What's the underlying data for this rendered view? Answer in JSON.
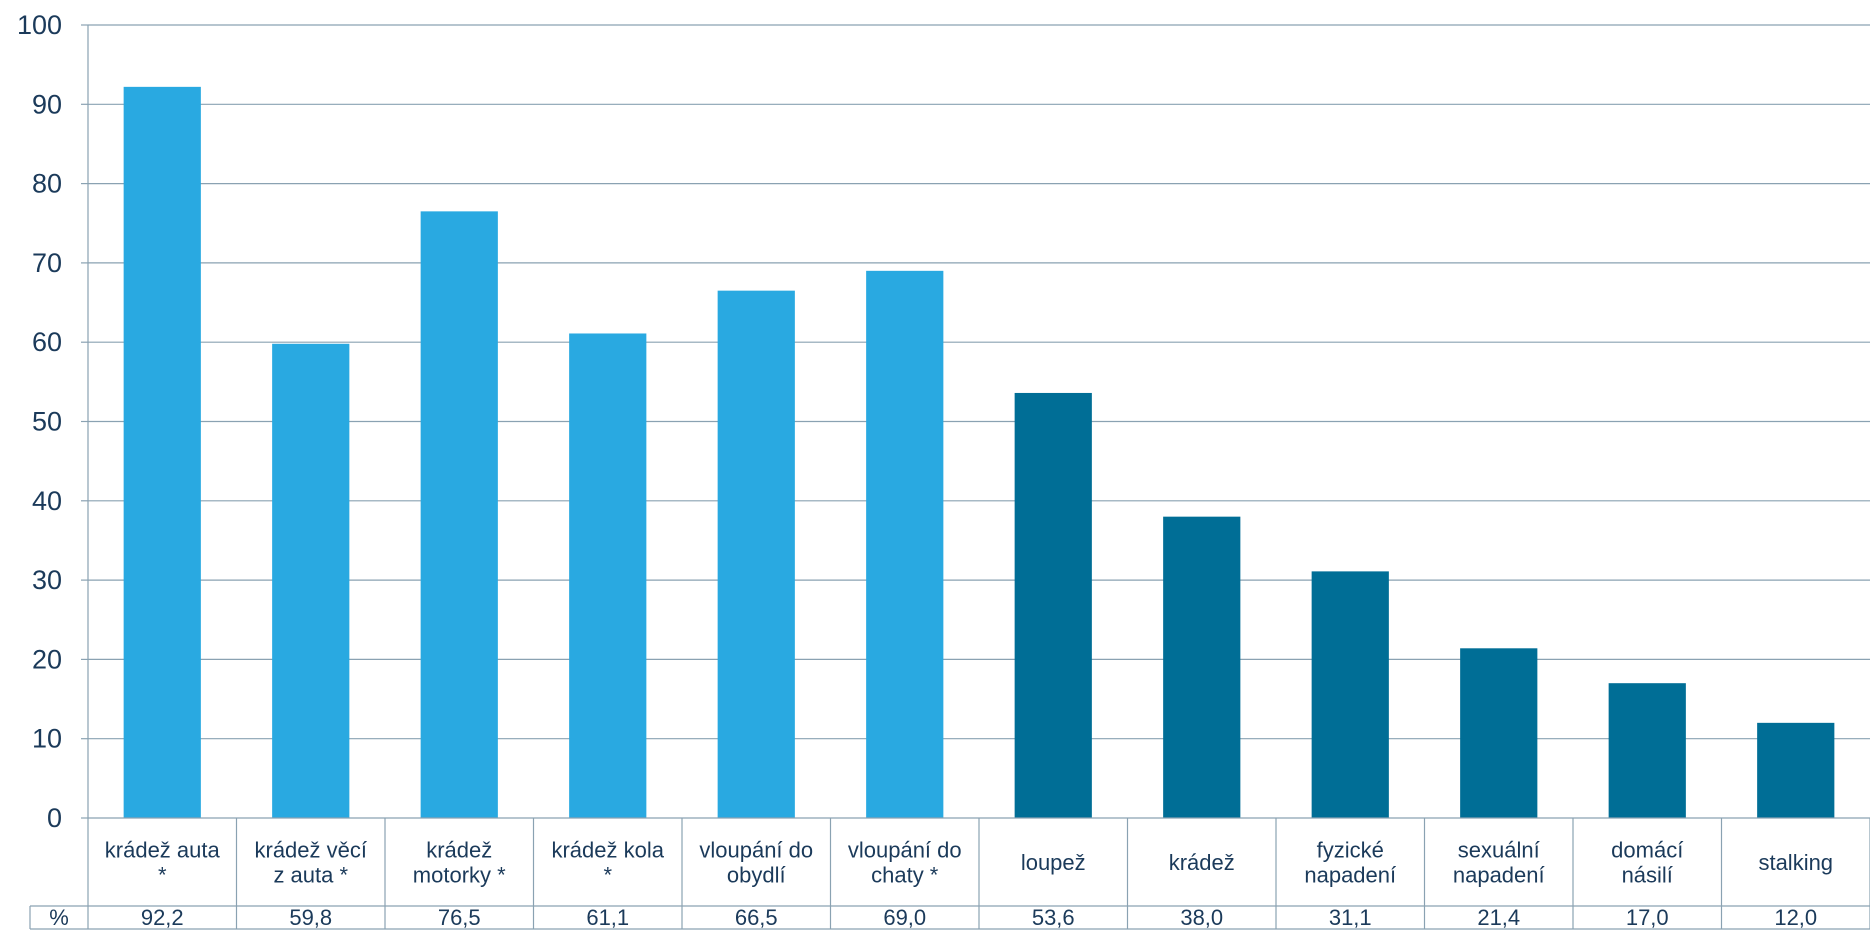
{
  "chart_data": {
    "type": "bar",
    "categories": [
      [
        "krádež auta",
        "*"
      ],
      [
        "krádež věcí",
        "z auta *"
      ],
      [
        "krádež",
        "motorky *"
      ],
      [
        "krádež kola",
        "*"
      ],
      [
        "vloupání do",
        "obydlí"
      ],
      [
        "vloupání do",
        "chaty *"
      ],
      [
        "loupež"
      ],
      [
        "krádež"
      ],
      [
        "fyzické",
        "napadení"
      ],
      [
        "sexuální",
        "napadení"
      ],
      [
        "domácí",
        "násilí"
      ],
      [
        "stalking"
      ]
    ],
    "values": [
      92.2,
      59.8,
      76.5,
      61.1,
      66.5,
      69.0,
      53.6,
      38.0,
      31.1,
      21.4,
      17.0,
      12.0
    ],
    "value_labels": [
      "92,2",
      "59,8",
      "76,5",
      "61,1",
      "66,5",
      "69,0",
      "53,6",
      "38,0",
      "31,1",
      "21,4",
      "17,0",
      "12,0"
    ],
    "bar_colors": [
      "#29a9e1",
      "#29a9e1",
      "#29a9e1",
      "#29a9e1",
      "#29a9e1",
      "#29a9e1",
      "#006e96",
      "#006e96",
      "#006e96",
      "#006e96",
      "#006e96",
      "#006e96"
    ],
    "table_row_label": "%",
    "y_ticks": [
      "0",
      "10",
      "20",
      "30",
      "40",
      "50",
      "60",
      "70",
      "80",
      "90",
      "100"
    ],
    "ylim": [
      0,
      100
    ],
    "grid": true,
    "title": "",
    "xlabel": "",
    "ylabel": ""
  }
}
